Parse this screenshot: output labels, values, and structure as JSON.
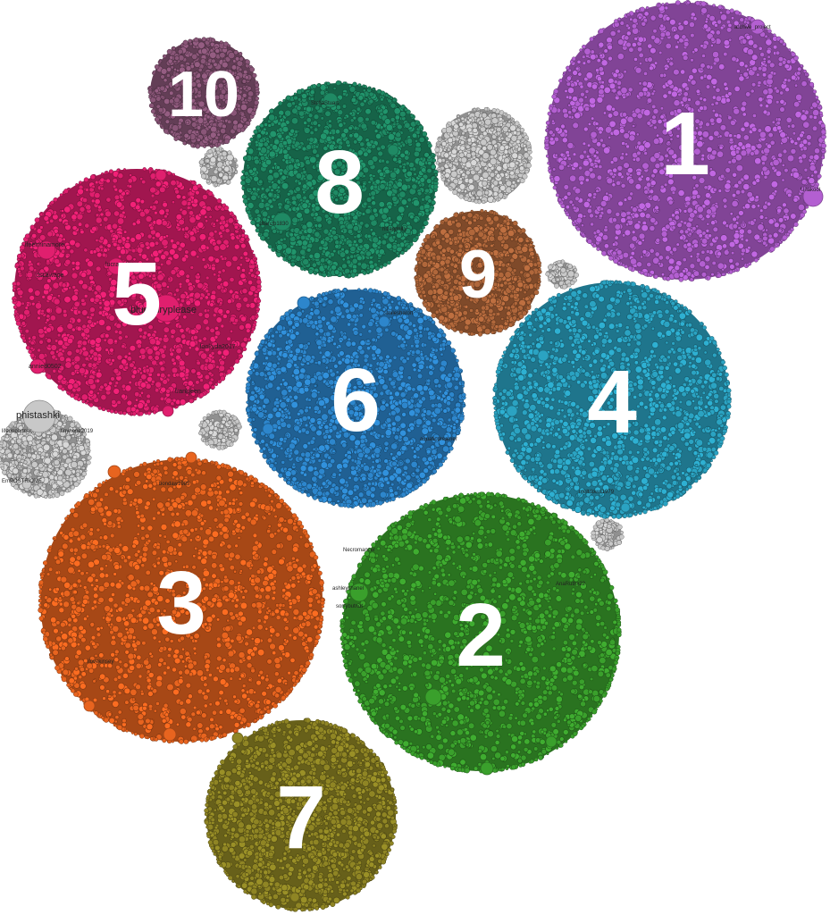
{
  "figure": {
    "clusters": [
      {
        "id": "cluster-1",
        "number": "1",
        "color": "#b35fd1",
        "labels": [
          "archive_project",
          "Unakool"
        ]
      },
      {
        "id": "cluster-2",
        "number": "2",
        "color": "#3aa02c",
        "labels": [
          "Necromancer",
          "ashleychanel",
          "sorrybutnot",
          "AnaRuthx22"
        ]
      },
      {
        "id": "cluster-3",
        "number": "3",
        "color": "#e8641f",
        "labels": [
          "bondaw1985",
          "ilovekinsey"
        ]
      },
      {
        "id": "cluster-4",
        "number": "4",
        "color": "#2ba3c2",
        "labels": [
          "meltdown1979"
        ]
      },
      {
        "id": "cluster-5",
        "number": "5",
        "color": "#e01f6e",
        "labels": [
          "bluefairyplease",
          "ifeelminamore",
          "lucrasoft",
          "dscawage",
          "frankjeen",
          "annied0502",
          "lookyda2017"
        ]
      },
      {
        "id": "cluster-6",
        "number": "6",
        "color": "#2d86cc",
        "labels": [
          "smilesharon",
          "aquaticdreamer"
        ]
      },
      {
        "id": "cluster-7",
        "number": "7",
        "color": "#8f8524",
        "labels": []
      },
      {
        "id": "cluster-8",
        "number": "8",
        "color": "#1f8a64",
        "labels": [
          "zbanzb1830",
          "StellaStuart",
          "hillarymilly"
        ]
      },
      {
        "id": "cluster-9",
        "number": "9",
        "color": "#b0673b",
        "labels": []
      },
      {
        "id": "cluster-10",
        "number": "10",
        "color": "#8a5678",
        "labels": []
      }
    ],
    "gray_clusters": [
      {
        "id": "gray-1",
        "color": "#c8c8c8",
        "labels": [
          "phistashki",
          "lifeonpartner",
          "tinyhope2019",
          "EmPOSTRIOME"
        ]
      },
      {
        "id": "gray-2",
        "color": "#c8c8c8",
        "labels": []
      },
      {
        "id": "gray-3",
        "color": "#c8c8c8",
        "labels": []
      },
      {
        "id": "gray-4",
        "color": "#c8c8c8",
        "labels": []
      },
      {
        "id": "gray-5",
        "color": "#c8c8c8",
        "labels": []
      },
      {
        "id": "gray-6",
        "color": "#c8c8c8",
        "labels": []
      }
    ]
  }
}
